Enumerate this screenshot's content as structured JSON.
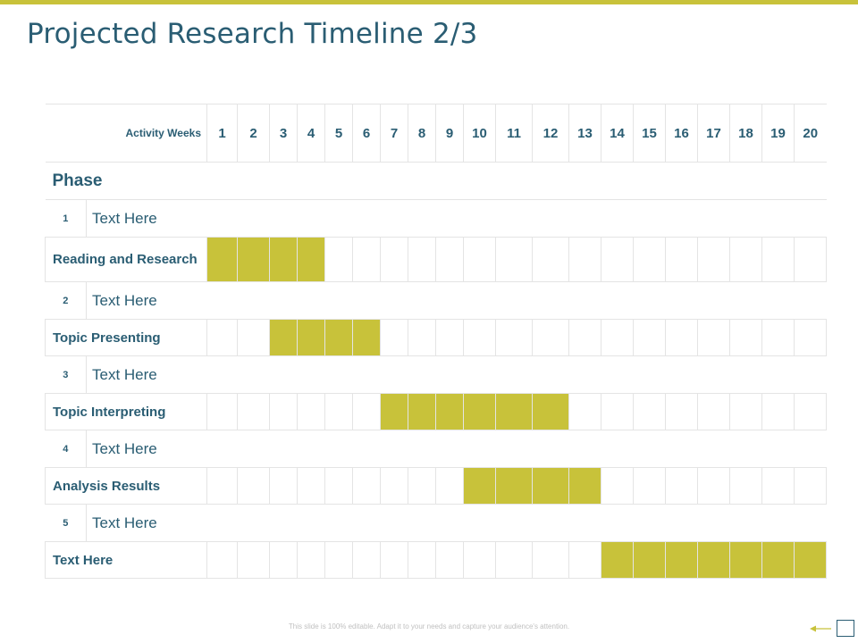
{
  "title": "Projected Research Timeline 2/3",
  "header": {
    "activity_label": "Activity Weeks",
    "weeks": [
      "1",
      "2",
      "3",
      "4",
      "5",
      "6",
      "7",
      "8",
      "9",
      "10",
      "11",
      "12",
      "13",
      "14",
      "15",
      "16",
      "17",
      "18",
      "19",
      "20"
    ]
  },
  "phase_heading": "Phase",
  "rows": [
    {
      "num": "1",
      "label": "Text Here",
      "activity": "Reading and Research",
      "span": [
        1,
        4
      ]
    },
    {
      "num": "2",
      "label": "Text Here",
      "activity": "Topic Presenting",
      "span": [
        3,
        6
      ]
    },
    {
      "num": "3",
      "label": "Text Here",
      "activity": "Topic Interpreting",
      "span": [
        7,
        12
      ]
    },
    {
      "num": "4",
      "label": "Text Here",
      "activity": "Analysis Results",
      "span": [
        10,
        13
      ]
    },
    {
      "num": "5",
      "label": "Text Here",
      "activity": "Text Here",
      "span": [
        14,
        20
      ]
    }
  ],
  "footer": "This slide is 100% editable. Adapt it to your needs and capture your audience's attention.",
  "colors": {
    "accent": "#c8c23a",
    "text": "#2a5d73",
    "grid": "#e4e4e4"
  }
}
